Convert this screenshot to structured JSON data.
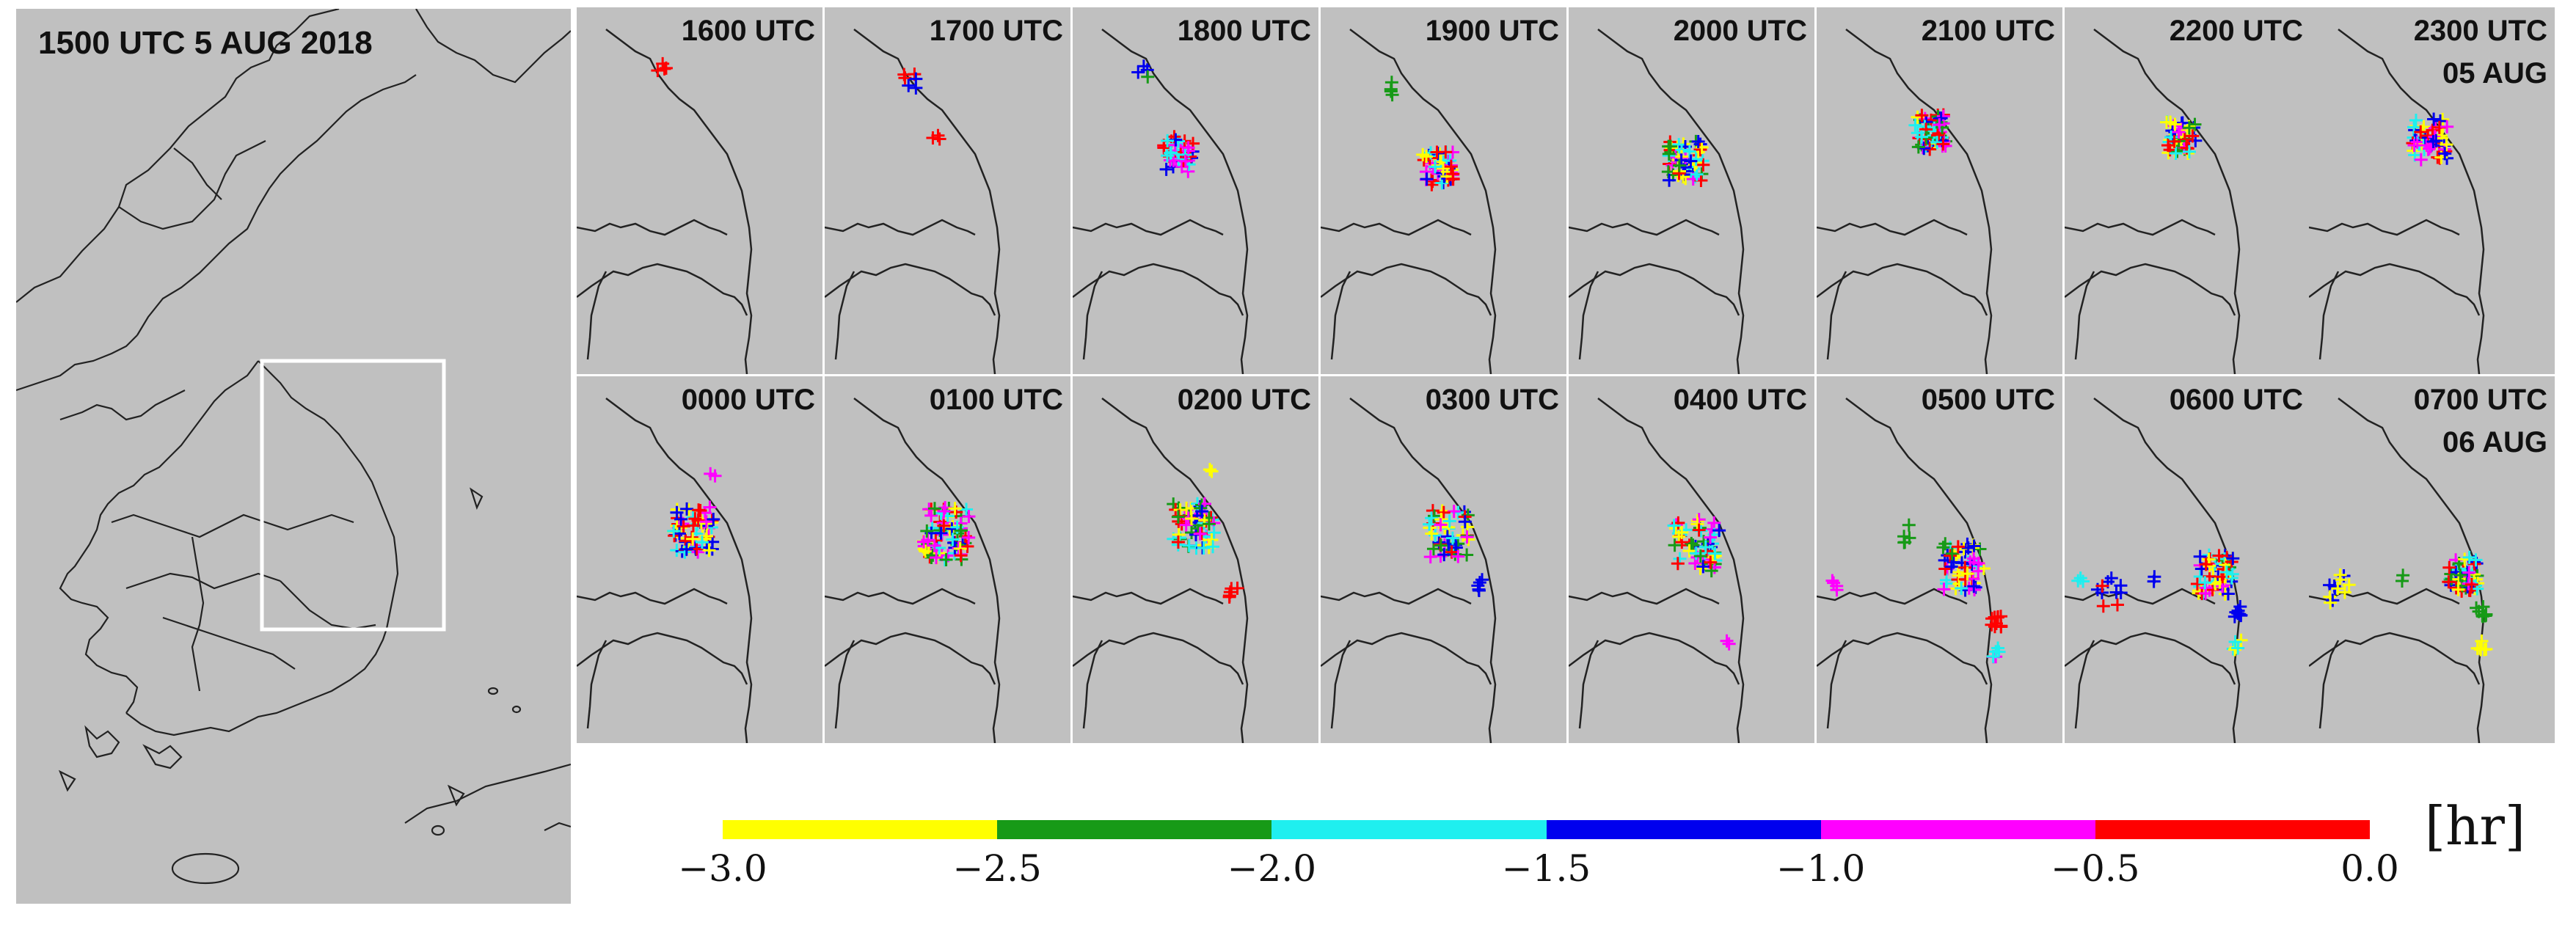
{
  "overview": {
    "title": "1500 UTC 5 AUG 2018"
  },
  "panels": [
    {
      "time": "1600 UTC",
      "date": ""
    },
    {
      "time": "1700 UTC",
      "date": ""
    },
    {
      "time": "1800 UTC",
      "date": ""
    },
    {
      "time": "1900 UTC",
      "date": ""
    },
    {
      "time": "2000 UTC",
      "date": ""
    },
    {
      "time": "2100 UTC",
      "date": ""
    },
    {
      "time": "2200 UTC",
      "date": ""
    },
    {
      "time": "2300 UTC",
      "date": "05 AUG"
    },
    {
      "time": "0000 UTC",
      "date": ""
    },
    {
      "time": "0100 UTC",
      "date": ""
    },
    {
      "time": "0200 UTC",
      "date": ""
    },
    {
      "time": "0300 UTC",
      "date": ""
    },
    {
      "time": "0400 UTC",
      "date": ""
    },
    {
      "time": "0500 UTC",
      "date": ""
    },
    {
      "time": "0600 UTC",
      "date": ""
    },
    {
      "time": "0700 UTC",
      "date": "06 AUG"
    }
  ],
  "colorbar": {
    "colors": [
      "#ffff00",
      "#179a17",
      "#1fefef",
      "#0000ee",
      "#ff00ff",
      "#ff0000"
    ],
    "ticks": [
      "−3.0",
      "−2.5",
      "−2.0",
      "−1.5",
      "−1.0",
      "−0.5",
      "0.0"
    ],
    "unit": "[hr]"
  },
  "colors": {
    "panel_bg": "#c0c0c0",
    "border": "#222222",
    "box": "#ffffff"
  }
}
